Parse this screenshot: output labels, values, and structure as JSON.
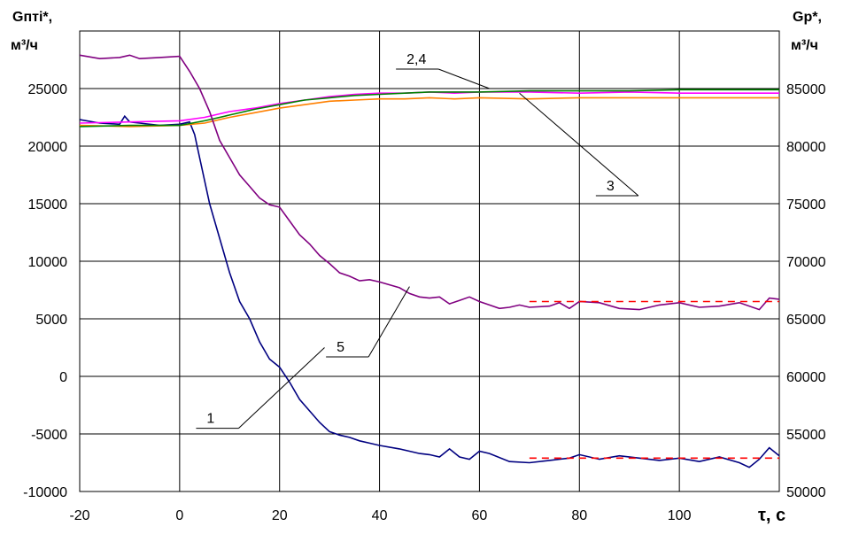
{
  "chart_data": {
    "type": "line",
    "title": "",
    "y_left_label": {
      "line1": "Gпті*,",
      "line2": "м³/ч"
    },
    "y_right_label": {
      "line1": "Gр*,",
      "line2": "м³/ч"
    },
    "x_label": "τ, с",
    "xlim": [
      -20,
      120
    ],
    "ylim_left": [
      -10000,
      30000
    ],
    "ylim_right": [
      50000,
      90000
    ],
    "x_ticks": [
      -20,
      0,
      20,
      40,
      60,
      80,
      100
    ],
    "y_left_ticks": [
      -10000,
      -5000,
      0,
      5000,
      10000,
      15000,
      20000,
      25000
    ],
    "y_right_ticks": [
      50000,
      55000,
      60000,
      65000,
      70000,
      75000,
      80000,
      85000
    ],
    "grid": true,
    "series": [
      {
        "label": "1",
        "axis": "left",
        "color": "#000080",
        "x": [
          -20,
          -16,
          -12,
          -11,
          -10,
          -8,
          -4,
          0,
          2,
          3,
          4,
          6,
          8,
          10,
          12,
          14,
          16,
          18,
          20,
          22,
          24,
          26,
          28,
          30,
          32,
          34,
          36,
          38,
          40,
          44,
          46,
          48,
          50,
          52,
          54,
          56,
          58,
          60,
          62,
          66,
          70,
          74,
          78,
          80,
          84,
          88,
          92,
          96,
          100,
          104,
          108,
          112,
          114,
          116,
          118,
          120
        ],
        "y": [
          22300,
          22000,
          21900,
          22600,
          22100,
          22000,
          21800,
          21900,
          22100,
          21000,
          19000,
          15000,
          12000,
          9000,
          6500,
          5000,
          3000,
          1500,
          800,
          -500,
          -2000,
          -3000,
          -4000,
          -4800,
          -5100,
          -5300,
          -5600,
          -5800,
          -6000,
          -6300,
          -6500,
          -6700,
          -6800,
          -7000,
          -6300,
          -7000,
          -7200,
          -6500,
          -6700,
          -7400,
          -7500,
          -7300,
          -7100,
          -6800,
          -7200,
          -6900,
          -7100,
          -7300,
          -7100,
          -7400,
          -7000,
          -7500,
          -7900,
          -7200,
          -6200,
          -6900
        ]
      },
      {
        "label": "2",
        "axis": "right",
        "color": "#FF00FF",
        "x": [
          -20,
          -10,
          0,
          5,
          10,
          15,
          20,
          25,
          30,
          35,
          40,
          45,
          50,
          55,
          60,
          70,
          80,
          90,
          100,
          110,
          120
        ],
        "y": [
          82000,
          82100,
          82200,
          82500,
          83000,
          83300,
          83700,
          84000,
          84300,
          84500,
          84600,
          84600,
          84700,
          84600,
          84700,
          84700,
          84600,
          84700,
          84600,
          84600,
          84600
        ]
      },
      {
        "label": "3",
        "axis": "right",
        "color": "#FF8000",
        "x": [
          -20,
          -10,
          0,
          5,
          10,
          15,
          20,
          25,
          30,
          35,
          40,
          45,
          50,
          55,
          60,
          70,
          80,
          90,
          100,
          110,
          120
        ],
        "y": [
          81800,
          81700,
          81800,
          82000,
          82500,
          82900,
          83300,
          83600,
          83900,
          84000,
          84100,
          84100,
          84200,
          84100,
          84200,
          84100,
          84200,
          84200,
          84200,
          84200,
          84200
        ]
      },
      {
        "label": "4",
        "axis": "right",
        "color": "#008000",
        "x": [
          -20,
          -10,
          0,
          5,
          10,
          15,
          20,
          25,
          30,
          35,
          40,
          45,
          50,
          55,
          60,
          70,
          80,
          90,
          100,
          110,
          120
        ],
        "y": [
          81700,
          81800,
          81800,
          82200,
          82700,
          83200,
          83600,
          84000,
          84200,
          84400,
          84500,
          84600,
          84700,
          84700,
          84700,
          84800,
          84800,
          84800,
          84900,
          84900,
          84900
        ]
      },
      {
        "label": "5",
        "axis": "right",
        "color": "#800080",
        "x": [
          -20,
          -16,
          -12,
          -10,
          -8,
          -4,
          0,
          2,
          4,
          6,
          8,
          10,
          12,
          14,
          16,
          18,
          20,
          22,
          24,
          26,
          28,
          30,
          32,
          34,
          36,
          38,
          40,
          44,
          46,
          48,
          50,
          52,
          54,
          56,
          58,
          60,
          62,
          64,
          66,
          68,
          70,
          74,
          76,
          78,
          80,
          84,
          88,
          92,
          96,
          100,
          104,
          108,
          112,
          116,
          118,
          120
        ],
        "y": [
          87900,
          87600,
          87700,
          87900,
          87600,
          87700,
          87800,
          86500,
          85000,
          83000,
          80500,
          79000,
          77500,
          76500,
          75500,
          74900,
          74700,
          73500,
          72300,
          71500,
          70500,
          69800,
          69000,
          68700,
          68300,
          68400,
          68200,
          67700,
          67200,
          66900,
          66800,
          66900,
          66300,
          66600,
          66900,
          66500,
          66200,
          65900,
          66000,
          66200,
          66000,
          66100,
          66400,
          65900,
          66500,
          66400,
          65900,
          65800,
          66200,
          66400,
          66000,
          66100,
          66400,
          65800,
          66800,
          66700
        ]
      }
    ],
    "reference_lines": [
      {
        "axis": "right",
        "x": [
          70,
          120
        ],
        "y": [
          66500,
          66500
        ],
        "color": "#FF0000",
        "style": "dashed"
      },
      {
        "axis": "left",
        "x": [
          70,
          120
        ],
        "y": [
          -7100,
          -7100
        ],
        "color": "#FF0000",
        "style": "dashed"
      }
    ],
    "annotations": [
      {
        "text": "1",
        "label_x": 4,
        "label_y": -4200,
        "target_x": 29,
        "target_y": 2500
      },
      {
        "text": "5",
        "label_x": 30,
        "label_y": 2000,
        "target_x": 46,
        "target_y": 7800
      },
      {
        "text": "3",
        "label_x": 84,
        "label_y": 16000,
        "target_x": 68,
        "target_y": 24600
      },
      {
        "text": "2,4",
        "label_x": 44,
        "label_y": 27000,
        "target_x": 62,
        "target_y": 25000
      }
    ]
  }
}
